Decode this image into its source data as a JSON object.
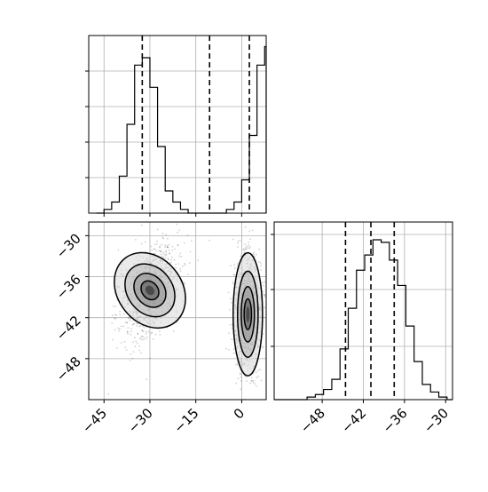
{
  "chart_data": [
    {
      "type": "histogram",
      "panel": "top-left",
      "xlim": [
        -50,
        8
      ],
      "bin_width": 2.5,
      "bins_start": -47.5,
      "counts": [
        0,
        1,
        3,
        10,
        24,
        40,
        42,
        34,
        18,
        6,
        3,
        1,
        0,
        0,
        0,
        0,
        0,
        1,
        3,
        9,
        21,
        40,
        45,
        14,
        1
      ],
      "ymax": 48,
      "quantile_lines": [
        -32.5,
        -10.5,
        2.5
      ],
      "grid": true
    },
    {
      "type": "scatter",
      "panel": "bottom-left",
      "description": "2D density (scatter with contour levels)",
      "xlim": [
        -50,
        8
      ],
      "ylim": [
        -54,
        -28
      ],
      "xticks": [
        -45,
        -30,
        -15,
        0
      ],
      "xticklabels": [
        "−45",
        "−30",
        "−15",
        "0"
      ],
      "yticks": [
        -30,
        -36,
        -42,
        -48
      ],
      "yticklabels": [
        "−30",
        "−36",
        "−42",
        "−48"
      ],
      "clusters": [
        {
          "x_center": -30,
          "y_center": -38,
          "x_sd": 5,
          "y_sd": 3.5,
          "rotation": 0.5
        },
        {
          "x_center": 2,
          "y_center": -41.5,
          "x_sd": 2.4,
          "y_sd": 4.5,
          "rotation": 0
        }
      ],
      "grid": true
    },
    {
      "type": "histogram",
      "panel": "bottom-right",
      "xlim": [
        -55,
        -29
      ],
      "bin_width": 1.2,
      "bins_start": -55,
      "counts": [
        0,
        0,
        0,
        0,
        1,
        2,
        4,
        8,
        20,
        36,
        51,
        57,
        63,
        62,
        55,
        45,
        29,
        15,
        6,
        3,
        1,
        0
      ],
      "ymax": 70,
      "quantile_lines": [
        -44.6,
        -40.9,
        -37.5
      ],
      "xticks": [
        -48,
        -42,
        -36,
        -30
      ],
      "xticklabels": [
        "−48",
        "−42",
        "−36",
        "−30"
      ],
      "grid": true
    }
  ]
}
